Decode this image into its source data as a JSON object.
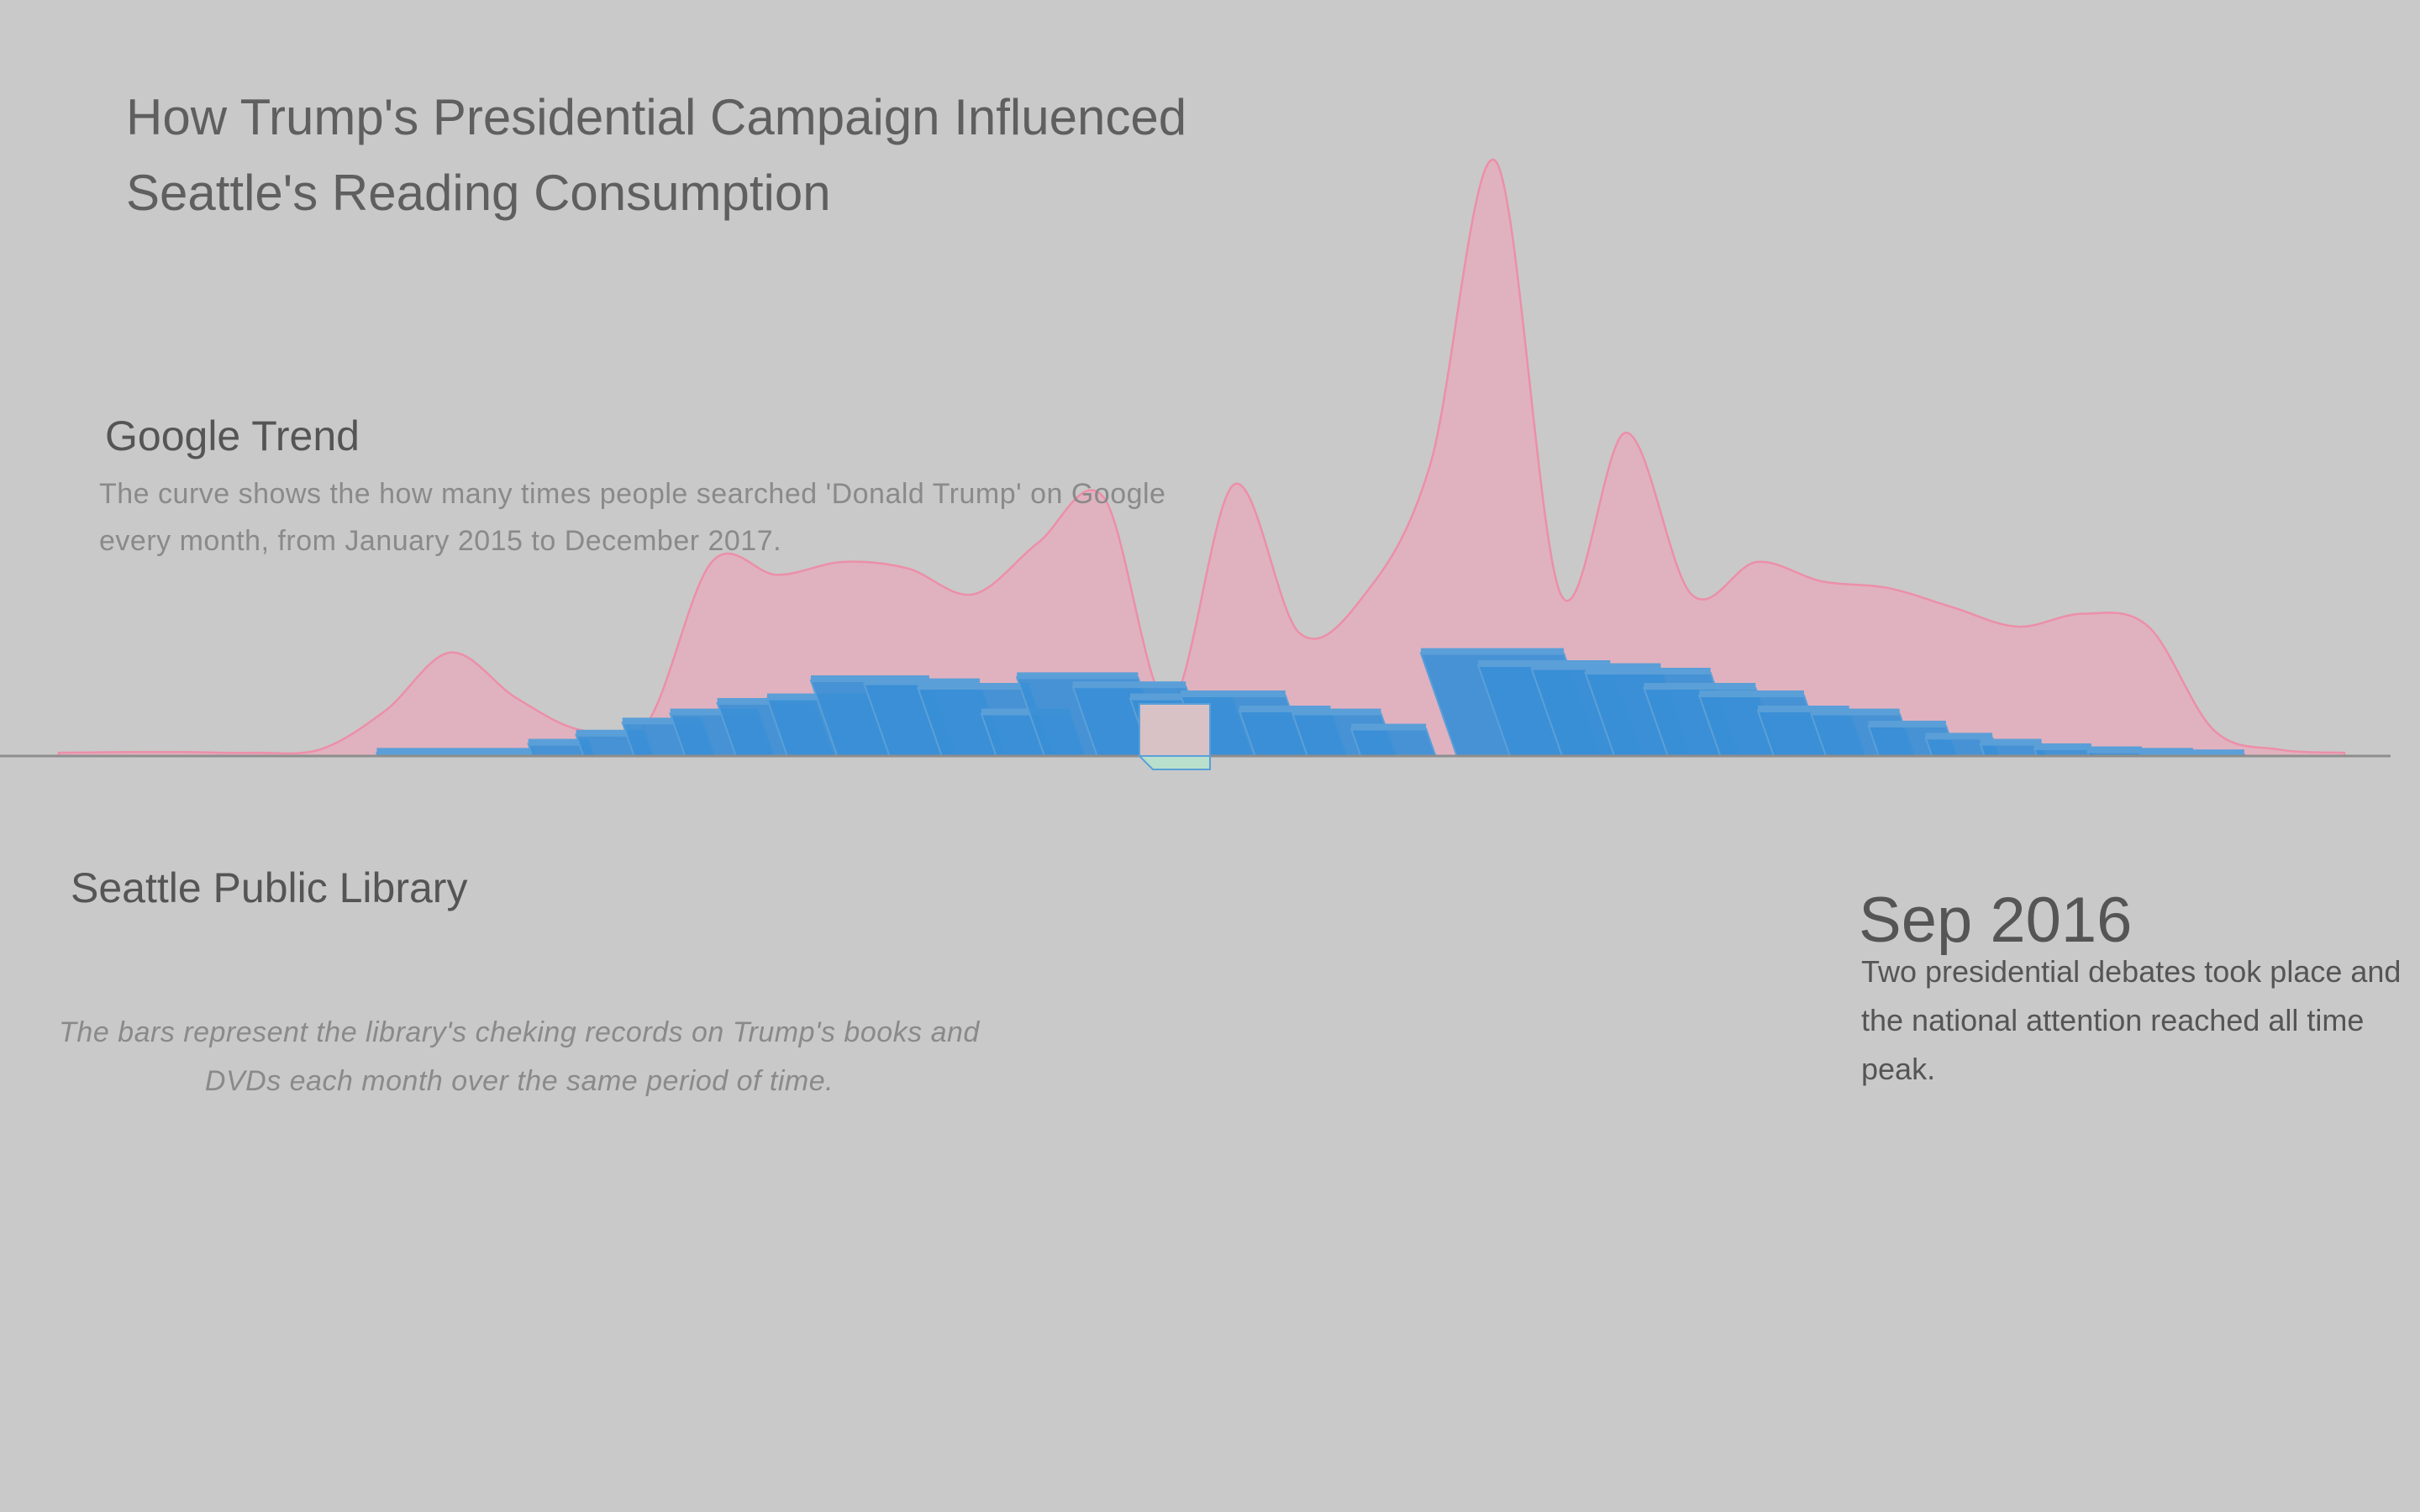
{
  "page": {
    "title": "How Trump's Presidential Campaign Influenced\nSeattle's Reading Consumption",
    "google_trend": {
      "heading": "Google Trend",
      "description": "The curve shows the how many times people searched 'Donald Trump' on Google every month, from January 2015 to December 2017."
    },
    "library": {
      "heading": "Seattle Public Library",
      "description": "The bars represent the library's cheking records on Trump's books and DVDs each month over the same period of time."
    },
    "annotation": {
      "month": "Sep 2016",
      "text": "Two presidential debates took place and the national attention reached all time peak."
    }
  },
  "chart_data": {
    "type": "area",
    "subtype": "google-trend-area-with-perspective-bars",
    "x_range": [
      "2015-01",
      "2017-12"
    ],
    "grid": false,
    "legend": "none",
    "colors": {
      "background": "#c9c9c9",
      "trend_fill": "#e0b2bf",
      "trend_stroke": "#ec8fa9",
      "bar_fill": "#3a8fd6",
      "bar_top": "#5b9fd8",
      "highlight_bar_top": "#d8c2c6",
      "highlight_bar_bottom": "#b9e0cc",
      "baseline": "#8e8e8e"
    },
    "trend_series": {
      "name": "Google searches for 'Donald Trump'",
      "x": [
        "2015-01",
        "2015-02",
        "2015-03",
        "2015-04",
        "2015-05",
        "2015-06",
        "2015-07",
        "2015-08",
        "2015-09",
        "2015-10",
        "2015-11",
        "2015-12",
        "2016-01",
        "2016-02",
        "2016-03",
        "2016-04",
        "2016-05",
        "2016-06",
        "2016-07",
        "2016-08",
        "2016-09",
        "2016-10",
        "2016-11",
        "2016-12",
        "2017-01",
        "2017-02",
        "2017-03",
        "2017-04",
        "2017-05",
        "2017-06",
        "2017-07",
        "2017-08",
        "2017-09",
        "2017-10",
        "2017-11",
        "2017-12"
      ],
      "values": [
        0.5,
        0.6,
        0.6,
        0.5,
        1,
        7,
        16,
        9,
        4,
        5,
        30,
        28,
        30,
        29,
        25,
        33,
        40,
        8,
        42,
        19,
        25,
        45,
        92,
        25,
        50,
        25,
        30,
        27,
        26,
        23,
        20,
        22,
        20,
        4,
        1,
        0.5
      ],
      "ylim": [
        0,
        100
      ]
    },
    "bars_series": {
      "name": "Seattle Public Library checkouts of Trump books and DVDs",
      "x": [
        "2015-01",
        "2015-02",
        "2015-03",
        "2015-04",
        "2015-05",
        "2015-06",
        "2015-07",
        "2015-08",
        "2015-09",
        "2015-10",
        "2015-11",
        "2015-12",
        "2016-01",
        "2016-02",
        "2016-03",
        "2016-04",
        "2016-05",
        "2016-06",
        "2016-07",
        "2016-08",
        "2016-09",
        "2016-10",
        "2016-11",
        "2016-12",
        "2017-01",
        "2017-02",
        "2017-03",
        "2017-04",
        "2017-05",
        "2017-06",
        "2017-07",
        "2017-08",
        "2017-09",
        "2017-10",
        "2017-11",
        "2017-12"
      ],
      "values": [
        2,
        2,
        2,
        8,
        14,
        22,
        28,
        35,
        38,
        50,
        48,
        45,
        28,
        52,
        46,
        38,
        40,
        30,
        28,
        18,
        70,
        68,
        60,
        58,
        55,
        45,
        40,
        30,
        28,
        20,
        12,
        8,
        5,
        3,
        2,
        1
      ],
      "highlight": "2016-09"
    }
  }
}
